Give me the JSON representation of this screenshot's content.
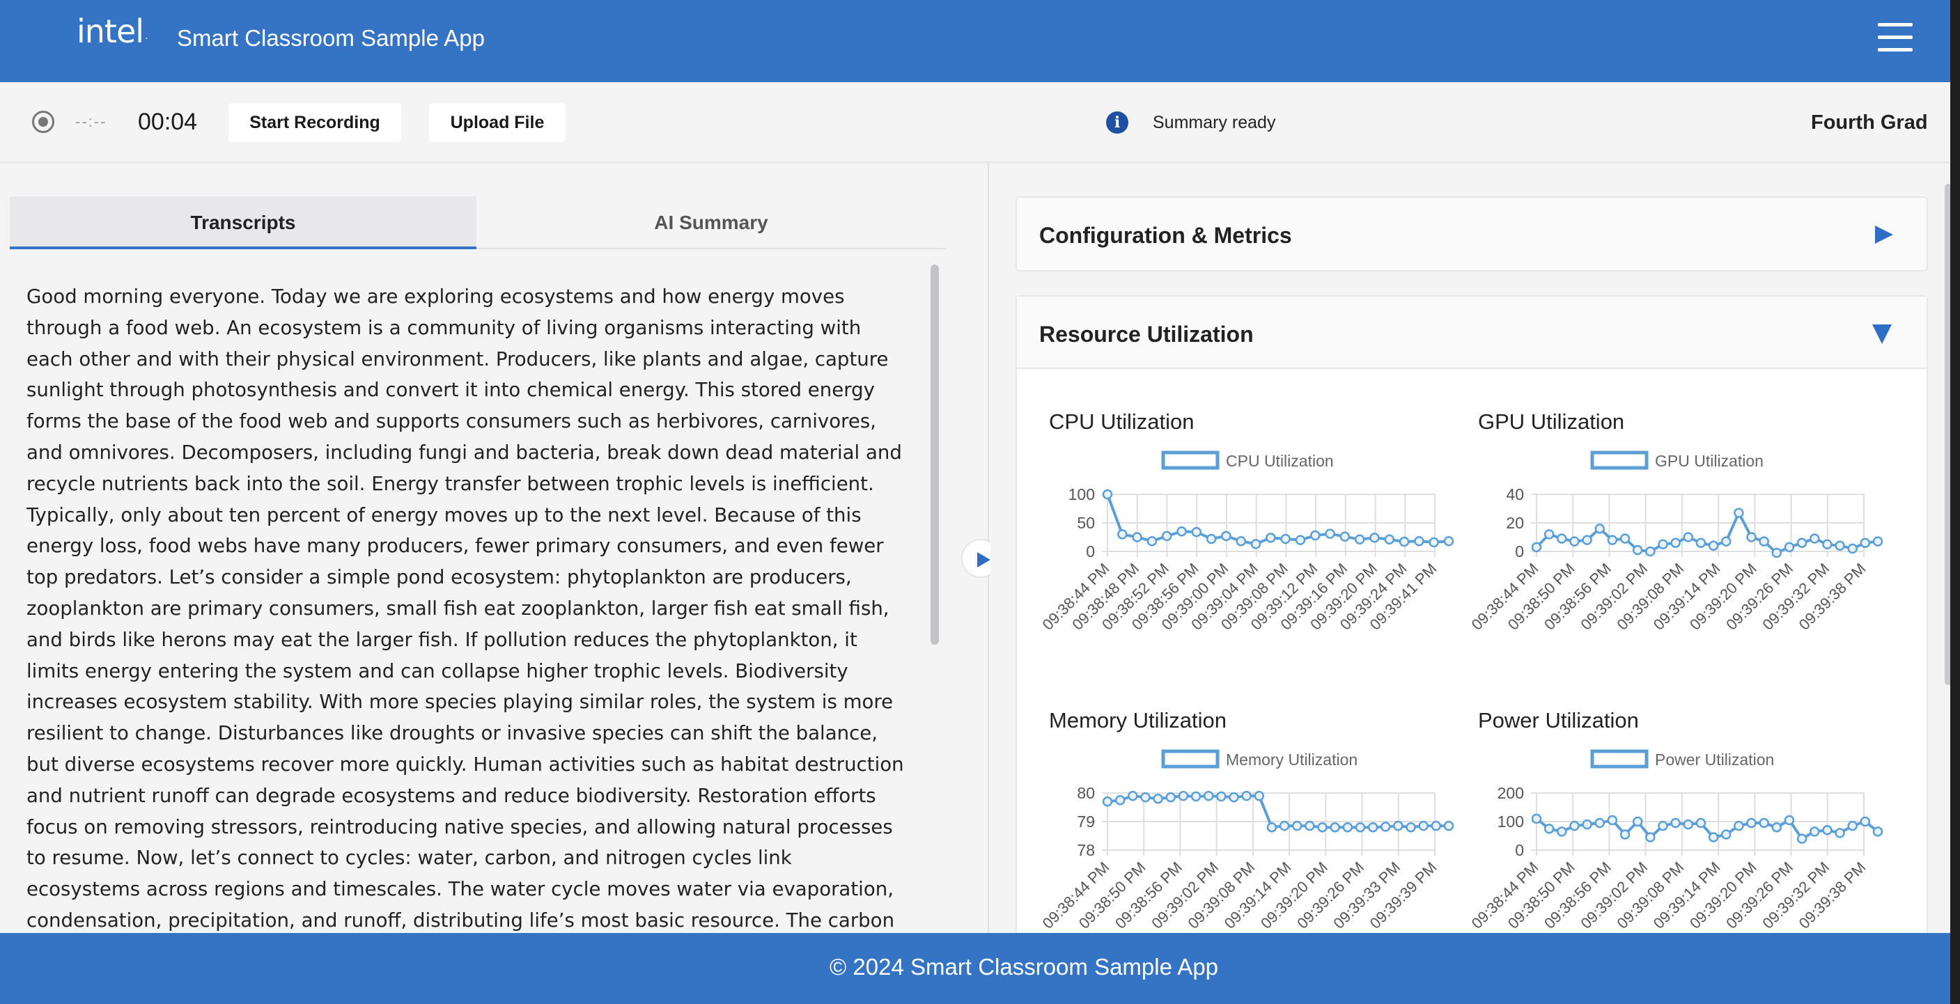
{
  "header": {
    "logo": "intel",
    "app_title": "Smart Classroom Sample App",
    "menu_icon": "hamburger-menu-icon"
  },
  "toolbar": {
    "record_status_icon": "record-icon",
    "elapsed_placeholder": "--:--",
    "timer": "00:04",
    "start_recording_label": "Start Recording",
    "upload_file_label": "Upload File",
    "status_icon": "info-icon",
    "status_text": "Summary ready",
    "grade_label": "Fourth Grad"
  },
  "left_panel": {
    "tabs": [
      {
        "label": "Transcripts",
        "active": true
      },
      {
        "label": "AI Summary",
        "active": false
      }
    ],
    "transcript_text": "Good morning everyone. Today we are exploring ecosystems and how energy moves through a food web. An ecosystem is a community of living organisms interacting with each other and with their physical environment. Producers, like plants and algae, capture sunlight through photosynthesis and convert it into chemical energy. This stored energy forms the base of the food web and supports consumers such as herbivores, carnivores, and omnivores. Decomposers, including fungi and bacteria, break down dead material and recycle nutrients back into the soil. Energy transfer between trophic levels is inefficient. Typically, only about ten percent of energy moves up to the next level. Because of this energy loss, food webs have many producers, fewer primary consumers, and even fewer top predators. Let’s consider a simple pond ecosystem: phytoplankton are producers, zooplankton are primary consumers, small fish eat zooplankton, larger fish eat small fish, and birds like herons may eat the larger fish. If pollution reduces the phytoplankton, it limits energy entering the system and can collapse higher trophic levels. Biodiversity increases ecosystem stability. With more species playing similar roles, the system is more resilient to change. Disturbances like droughts or invasive species can shift the balance, but diverse ecosystems recover more quickly. Human activities such as habitat destruction and nutrient runoff can degrade ecosystems and reduce biodiversity. Restoration efforts focus on removing stressors, reintroducing native species, and allowing natural processes to resume. Now, let’s connect to cycles: water, carbon, and nitrogen cycles link ecosystems across regions and timescales. The water cycle moves water via evaporation, condensation, precipitation, and runoff, distributing life’s most basic resource. The carbon cycle ties photosynthesis and respiration together. Plants fix carbon; consumers and decomposers return it to the atmosphere. Excess"
  },
  "right_panel": {
    "sections": [
      {
        "title": "Configuration & Metrics",
        "expanded": false
      },
      {
        "title": "Resource Utilization",
        "expanded": true
      }
    ]
  },
  "colors": {
    "brand_blue": "#3574c4",
    "chart_line": "#5b9fd6"
  },
  "chart_data": [
    {
      "type": "line",
      "title": "CPU Utilization",
      "legend": "CPU Utilization",
      "yticks": [
        0,
        50,
        100
      ],
      "ylim": [
        0,
        100
      ],
      "xtick_labels": [
        "09:38:44 PM",
        "09:38:48 PM",
        "09:38:52 PM",
        "09:38:56 PM",
        "09:39:00 PM",
        "09:39:04 PM",
        "09:39:08 PM",
        "09:39:12 PM",
        "09:39:16 PM",
        "09:39:20 PM",
        "09:39:24 PM",
        "09:39:41 PM"
      ],
      "series": [
        {
          "values": [
            100,
            30,
            25,
            18,
            27,
            35,
            34,
            22,
            27,
            18,
            13,
            24,
            22,
            20,
            28,
            31,
            26,
            21,
            24,
            21,
            17,
            18,
            16,
            18
          ]
        }
      ]
    },
    {
      "type": "line",
      "title": "GPU Utilization",
      "legend": "GPU Utilization",
      "yticks": [
        0,
        20,
        40
      ],
      "ylim": [
        0,
        40
      ],
      "xtick_labels": [
        "09:38:44 PM",
        "09:38:50 PM",
        "09:38:56 PM",
        "09:39:02 PM",
        "09:39:08 PM",
        "09:39:14 PM",
        "09:39:20 PM",
        "09:39:26 PM",
        "09:39:32 PM",
        "09:39:38 PM"
      ],
      "series": [
        {
          "values": [
            3,
            12,
            9,
            7,
            8,
            16,
            8,
            9,
            1,
            0,
            5,
            6,
            10,
            6,
            4,
            7,
            27,
            10,
            7,
            -1,
            3,
            6,
            9,
            5,
            4,
            2,
            6,
            7
          ]
        }
      ]
    },
    {
      "type": "line",
      "title": "Memory Utilization",
      "legend": "Memory Utilization",
      "yticks": [
        78,
        79,
        80
      ],
      "ylim": [
        78,
        80
      ],
      "xtick_labels": [
        "09:38:44 PM",
        "09:38:50 PM",
        "09:38:56 PM",
        "09:39:02 PM",
        "09:39:08 PM",
        "09:39:14 PM",
        "09:39:20 PM",
        "09:39:26 PM",
        "09:39:33 PM",
        "09:39:39 PM"
      ],
      "series": [
        {
          "values": [
            79.7,
            79.75,
            79.9,
            79.85,
            79.8,
            79.85,
            79.9,
            79.88,
            79.9,
            79.88,
            79.85,
            79.9,
            79.9,
            78.8,
            78.85,
            78.85,
            78.85,
            78.8,
            78.8,
            78.8,
            78.8,
            78.8,
            78.82,
            78.85,
            78.8,
            78.85,
            78.85,
            78.85
          ]
        }
      ]
    },
    {
      "type": "line",
      "title": "Power Utilization",
      "legend": "Power Utilization",
      "yticks": [
        0,
        100,
        200
      ],
      "ylim": [
        0,
        200
      ],
      "xtick_labels": [
        "09:38:44 PM",
        "09:38:50 PM",
        "09:38:56 PM",
        "09:39:02 PM",
        "09:39:08 PM",
        "09:39:14 PM",
        "09:39:20 PM",
        "09:39:26 PM",
        "09:39:32 PM",
        "09:39:38 PM"
      ],
      "series": [
        {
          "values": [
            110,
            75,
            65,
            85,
            90,
            95,
            105,
            55,
            100,
            45,
            85,
            95,
            90,
            95,
            45,
            55,
            85,
            95,
            95,
            80,
            105,
            40,
            65,
            70,
            60,
            85,
            100,
            65
          ]
        }
      ]
    }
  ],
  "footer": {
    "text": "© 2024 Smart Classroom Sample App"
  }
}
